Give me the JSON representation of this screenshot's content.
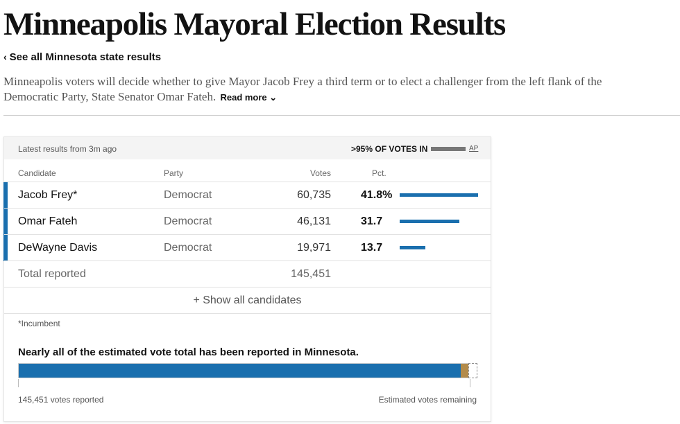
{
  "page": {
    "title": "Minneapolis Mayoral Election Results",
    "back_link": "See all Minnesota state results",
    "summary": "Minneapolis voters will decide whether to give Mayor Jacob Frey a third term or to elect a challenger from the left flank of the Democratic Party, State Senator Omar Fateh.",
    "read_more": "Read more"
  },
  "results": {
    "latest": "Latest results from 3m ago",
    "reporting_label": ">95% OF VOTES IN",
    "reporting_fraction": 0.95,
    "source": "AP",
    "columns": {
      "candidate": "Candidate",
      "party": "Party",
      "votes": "Votes",
      "pct": "Pct."
    },
    "candidates": [
      {
        "name": "Jacob Frey*",
        "party": "Democrat",
        "votes": "60,735",
        "pct_label": "41.8%",
        "pct": 41.8
      },
      {
        "name": "Omar Fateh",
        "party": "Democrat",
        "votes": "46,131",
        "pct_label": "31.7",
        "pct": 31.7
      },
      {
        "name": "DeWayne Davis",
        "party": "Democrat",
        "votes": "19,971",
        "pct_label": "13.7",
        "pct": 13.7
      }
    ],
    "total": {
      "label": "Total reported",
      "votes": "145,451"
    },
    "show_all": "+ Show all candidates",
    "incumbent_note": "*Incumbent",
    "estimate": {
      "title": "Nearly all of the estimated vote total has been reported in Minnesota.",
      "reported_label": "145,451 votes reported",
      "remaining_label": "Estimated votes remaining",
      "reported_fraction": 0.965,
      "pending_fraction": 0.017,
      "remaining_fraction": 0.018
    }
  },
  "colors": {
    "democrat": "#1a6fae",
    "pending": "#b38b4a",
    "bar_track": "#cfcfcf"
  }
}
